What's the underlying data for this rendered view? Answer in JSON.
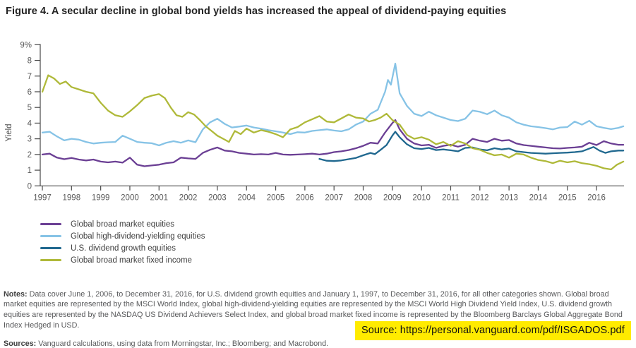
{
  "figure": {
    "title": "Figure 4. A secular decline in global bond yields has increased the appeal of dividend-paying equities"
  },
  "chart_data": {
    "type": "line",
    "title": "Figure 4. A secular decline in global bond yields has increased the appeal of dividend-paying equities",
    "xlabel": "",
    "ylabel": "Yield",
    "ylim": [
      0,
      9
    ],
    "xlim": [
      1997,
      2017
    ],
    "grid": false,
    "legend_position": "bottom-left",
    "y_tick_values": [
      0,
      1,
      2,
      3,
      4,
      5,
      6,
      7,
      8,
      9
    ],
    "y_tick_labels": [
      "0",
      "1",
      "2",
      "3",
      "4",
      "5",
      "6",
      "7",
      "8",
      "9%"
    ],
    "x_tick_values": [
      1997,
      1998,
      1999,
      2000,
      2001,
      2002,
      2003,
      2004,
      2005,
      2006,
      2007,
      2008,
      2009,
      2010,
      2011,
      2012,
      2013,
      2014,
      2015,
      2016
    ],
    "x_tick_labels": [
      "1997",
      "1998",
      "1999",
      "2000",
      "2001",
      "2002",
      "2003",
      "2004",
      "2005",
      "2006",
      "2007",
      "2008",
      "2009",
      "2010",
      "2011",
      "2012",
      "2013",
      "2014",
      "2015",
      "2016"
    ],
    "axis_color": "#4a4a4a",
    "tick_text_color": "#5a5a5a",
    "series": [
      {
        "name": "Global broad market equities",
        "color": "#6B3F94",
        "x": [
          1997,
          1997.25,
          1997.5,
          1997.75,
          1998,
          1998.25,
          1998.5,
          1998.75,
          1999,
          1999.25,
          1999.5,
          1999.75,
          2000,
          2000.25,
          2000.5,
          2000.75,
          2001,
          2001.25,
          2001.5,
          2001.75,
          2002,
          2002.25,
          2002.5,
          2002.75,
          2003,
          2003.25,
          2003.5,
          2003.75,
          2004,
          2004.25,
          2004.5,
          2004.75,
          2005,
          2005.25,
          2005.5,
          2005.75,
          2006,
          2006.25,
          2006.5,
          2006.75,
          2007,
          2007.25,
          2007.5,
          2007.75,
          2008,
          2008.25,
          2008.5,
          2008.75,
          2009,
          2009.1,
          2009.25,
          2009.5,
          2009.75,
          2010,
          2010.25,
          2010.5,
          2010.75,
          2011,
          2011.25,
          2011.5,
          2011.75,
          2012,
          2012.25,
          2012.5,
          2012.75,
          2013,
          2013.25,
          2013.5,
          2013.75,
          2014,
          2014.25,
          2014.5,
          2014.75,
          2015,
          2015.25,
          2015.5,
          2015.75,
          2016,
          2016.25,
          2016.5,
          2016.75,
          2016.92
        ],
        "values": [
          2.0,
          2.05,
          1.8,
          1.7,
          1.78,
          1.68,
          1.62,
          1.68,
          1.55,
          1.5,
          1.55,
          1.48,
          1.8,
          1.35,
          1.25,
          1.3,
          1.35,
          1.45,
          1.5,
          1.8,
          1.75,
          1.72,
          2.1,
          2.3,
          2.45,
          2.25,
          2.2,
          2.1,
          2.05,
          2.0,
          2.02,
          2.0,
          2.1,
          2.0,
          1.98,
          2.0,
          2.02,
          2.05,
          2.0,
          2.05,
          2.15,
          2.2,
          2.28,
          2.4,
          2.55,
          2.75,
          2.7,
          3.4,
          4.0,
          4.2,
          3.6,
          3.0,
          2.7,
          2.58,
          2.62,
          2.42,
          2.55,
          2.62,
          2.5,
          2.62,
          3.0,
          2.88,
          2.8,
          3.0,
          2.88,
          2.92,
          2.7,
          2.6,
          2.55,
          2.5,
          2.45,
          2.4,
          2.38,
          2.42,
          2.45,
          2.5,
          2.75,
          2.6,
          2.85,
          2.7,
          2.62,
          2.62
        ]
      },
      {
        "name": "Global high-dividend-yielding equities",
        "color": "#86C3E6",
        "x": [
          1997,
          1997.25,
          1997.5,
          1997.75,
          1998,
          1998.25,
          1998.5,
          1998.75,
          1999,
          1999.25,
          1999.5,
          1999.75,
          2000,
          2000.25,
          2000.5,
          2000.75,
          2001,
          2001.25,
          2001.5,
          2001.75,
          2002,
          2002.25,
          2002.5,
          2002.75,
          2003,
          2003.25,
          2003.5,
          2003.75,
          2004,
          2004.25,
          2004.5,
          2004.75,
          2005,
          2005.25,
          2005.5,
          2005.75,
          2006,
          2006.25,
          2006.5,
          2006.75,
          2007,
          2007.25,
          2007.5,
          2007.75,
          2008,
          2008.25,
          2008.5,
          2008.75,
          2008.85,
          2008.95,
          2009.1,
          2009.25,
          2009.5,
          2009.75,
          2010,
          2010.25,
          2010.5,
          2010.75,
          2011,
          2011.25,
          2011.5,
          2011.75,
          2012,
          2012.25,
          2012.5,
          2012.75,
          2013,
          2013.25,
          2013.5,
          2013.75,
          2014,
          2014.25,
          2014.5,
          2014.75,
          2015,
          2015.25,
          2015.5,
          2015.75,
          2016,
          2016.25,
          2016.5,
          2016.75,
          2016.92
        ],
        "values": [
          3.4,
          3.45,
          3.15,
          2.9,
          3.0,
          2.95,
          2.8,
          2.7,
          2.75,
          2.78,
          2.8,
          3.2,
          3.0,
          2.8,
          2.75,
          2.72,
          2.58,
          2.75,
          2.85,
          2.75,
          2.9,
          2.78,
          3.6,
          4.05,
          4.28,
          3.95,
          3.72,
          3.78,
          3.85,
          3.72,
          3.65,
          3.55,
          3.48,
          3.4,
          3.3,
          3.42,
          3.4,
          3.5,
          3.55,
          3.6,
          3.53,
          3.48,
          3.6,
          3.9,
          4.1,
          4.6,
          4.85,
          6.0,
          6.75,
          6.45,
          7.8,
          5.9,
          5.1,
          4.6,
          4.45,
          4.73,
          4.5,
          4.35,
          4.2,
          4.13,
          4.28,
          4.8,
          4.72,
          4.57,
          4.8,
          4.5,
          4.35,
          4.05,
          3.9,
          3.8,
          3.75,
          3.68,
          3.6,
          3.72,
          3.75,
          4.1,
          3.9,
          4.15,
          3.8,
          3.7,
          3.62,
          3.7,
          3.8
        ]
      },
      {
        "name": "U.S. dividend growth equities",
        "color": "#20688F",
        "x": [
          2006.5,
          2006.75,
          2007,
          2007.25,
          2007.5,
          2007.75,
          2008,
          2008.25,
          2008.4,
          2008.6,
          2008.8,
          2009,
          2009.1,
          2009.25,
          2009.5,
          2009.75,
          2010,
          2010.25,
          2010.5,
          2010.75,
          2011,
          2011.25,
          2011.5,
          2011.75,
          2012,
          2012.25,
          2012.5,
          2012.75,
          2013,
          2013.25,
          2013.5,
          2013.75,
          2014,
          2014.25,
          2014.5,
          2014.75,
          2015,
          2015.25,
          2015.5,
          2015.9,
          2016.1,
          2016.3,
          2016.5,
          2016.75,
          2016.92
        ],
        "values": [
          1.72,
          1.6,
          1.58,
          1.62,
          1.7,
          1.78,
          1.95,
          2.1,
          2.02,
          2.3,
          2.6,
          3.2,
          3.45,
          3.1,
          2.65,
          2.4,
          2.35,
          2.42,
          2.28,
          2.32,
          2.27,
          2.2,
          2.42,
          2.45,
          2.32,
          2.27,
          2.4,
          2.32,
          2.38,
          2.2,
          2.15,
          2.1,
          2.08,
          2.05,
          2.08,
          2.1,
          2.12,
          2.15,
          2.2,
          2.48,
          2.25,
          2.1,
          2.2,
          2.25,
          2.25
        ]
      },
      {
        "name": "Global broad market fixed income",
        "color": "#AFB939",
        "x": [
          1997,
          1997.2,
          1997.4,
          1997.6,
          1997.8,
          1998,
          1998.25,
          1998.5,
          1998.75,
          1999,
          1999.25,
          1999.5,
          1999.75,
          2000,
          2000.25,
          2000.5,
          2000.75,
          2001,
          2001.2,
          2001.4,
          2001.6,
          2001.8,
          2002,
          2002.2,
          2002.4,
          2002.6,
          2002.8,
          2003,
          2003.2,
          2003.4,
          2003.6,
          2003.8,
          2004,
          2004.25,
          2004.5,
          2004.75,
          2005,
          2005.25,
          2005.5,
          2005.75,
          2006,
          2006.25,
          2006.5,
          2006.75,
          2007,
          2007.25,
          2007.5,
          2007.75,
          2008,
          2008.2,
          2008.4,
          2008.6,
          2008.8,
          2009,
          2009.25,
          2009.5,
          2009.75,
          2010,
          2010.25,
          2010.5,
          2010.75,
          2011,
          2011.25,
          2011.5,
          2011.75,
          2012,
          2012.25,
          2012.5,
          2012.75,
          2013,
          2013.25,
          2013.5,
          2013.75,
          2014,
          2014.25,
          2014.5,
          2014.75,
          2015,
          2015.25,
          2015.5,
          2015.75,
          2016,
          2016.25,
          2016.5,
          2016.7,
          2016.92
        ],
        "values": [
          6.0,
          7.05,
          6.85,
          6.5,
          6.65,
          6.3,
          6.15,
          6.0,
          5.9,
          5.3,
          4.8,
          4.5,
          4.4,
          4.75,
          5.15,
          5.6,
          5.75,
          5.85,
          5.6,
          5.0,
          4.5,
          4.4,
          4.7,
          4.55,
          4.2,
          3.8,
          3.5,
          3.2,
          3.0,
          2.8,
          3.5,
          3.3,
          3.65,
          3.4,
          3.55,
          3.45,
          3.3,
          3.1,
          3.6,
          3.75,
          4.05,
          4.25,
          4.45,
          4.1,
          4.05,
          4.3,
          4.55,
          4.35,
          4.3,
          4.1,
          4.2,
          4.35,
          4.6,
          4.2,
          3.9,
          3.25,
          3.0,
          3.1,
          2.95,
          2.65,
          2.8,
          2.55,
          2.85,
          2.7,
          2.4,
          2.3,
          2.1,
          1.95,
          2.0,
          1.8,
          2.05,
          2.0,
          1.8,
          1.65,
          1.58,
          1.45,
          1.6,
          1.5,
          1.57,
          1.45,
          1.38,
          1.28,
          1.12,
          1.05,
          1.35,
          1.55
        ]
      }
    ]
  },
  "notes": {
    "label": "Notes:",
    "text": " Data cover June 1, 2006, to December 31, 2016, for U.S. dividend growth equities and January 1, 1997, to December 31, 2016, for all other categories shown. Global broad market equities are represented by the MSCI World Index, global high-dividend-yielding equities are represented by the MSCI World High Dividend Yield Index, U.S. dividend growth equities are represented by the NASDAQ US Dividend Achievers Select Index, and global broad market fixed income is represented by the Bloomberg Barclays Global Aggregate Bond Index Hedged in USD."
  },
  "sources": {
    "label": "Sources:",
    "text": " Vanguard calculations, using data from Morningstar, Inc.; Bloomberg; and Macrobond."
  },
  "highlight": {
    "text": "Source: https://personal.vanguard.com/pdf/ISGADOS.pdf",
    "bg": "#FFEB00"
  }
}
